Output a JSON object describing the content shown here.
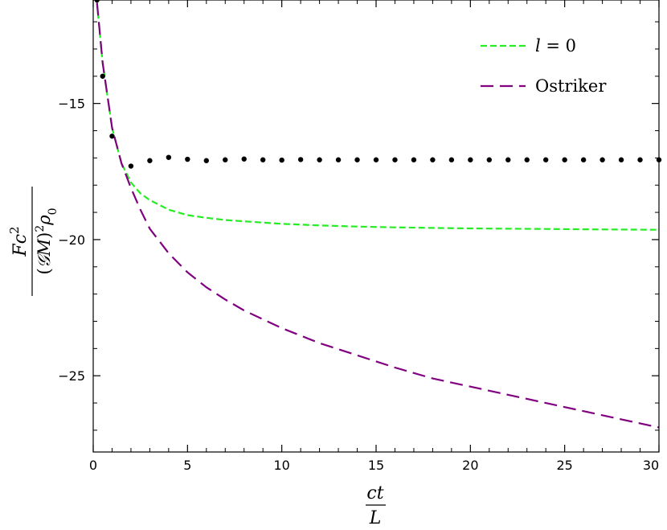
{
  "chart_data": {
    "type": "line",
    "xlabel": {
      "numerator": "ct",
      "denominator": "L"
    },
    "ylabel": {
      "numerator": {
        "base": "Fc",
        "sup": "2"
      },
      "denominator": {
        "prefix": "(",
        "calG": "𝒢",
        "M": "M",
        "close": ")",
        "sup": "2",
        "rho": "ρ",
        "sub": "0"
      }
    },
    "xlim": [
      0,
      30
    ],
    "ylim": [
      -27.8,
      -11.2
    ],
    "xticks": [
      0,
      5,
      10,
      15,
      20,
      25,
      30
    ],
    "xtick_labels": [
      "0",
      "5",
      "10",
      "15",
      "20",
      "25",
      "30"
    ],
    "yticks": [
      -15,
      -20,
      -25
    ],
    "ytick_labels": [
      "−15",
      "−20",
      "−25"
    ],
    "x_minor_step": 1,
    "y_minor_step": 1,
    "grid": false,
    "legend_position": "top-right",
    "series": [
      {
        "name": "l = 0",
        "legend": {
          "var": "l",
          "rest": " = 0"
        },
        "style": "short-dash",
        "color": "#22ee22",
        "x": [
          0.2,
          0.5,
          1.0,
          1.5,
          2.0,
          2.5,
          3.0,
          4.0,
          5.0,
          6.0,
          7.0,
          8.0,
          10.0,
          12.0,
          14.0,
          16.0,
          18.0,
          20.0,
          22.0,
          24.0,
          26.0,
          28.0,
          30.0
        ],
        "y": [
          -11.3,
          -13.5,
          -15.9,
          -17.2,
          -17.9,
          -18.3,
          -18.55,
          -18.9,
          -19.1,
          -19.2,
          -19.28,
          -19.33,
          -19.42,
          -19.48,
          -19.52,
          -19.55,
          -19.57,
          -19.59,
          -19.6,
          -19.61,
          -19.62,
          -19.63,
          -19.64
        ]
      },
      {
        "name": "Ostriker",
        "legend": {
          "var": "",
          "rest": "Ostriker"
        },
        "style": "long-dash",
        "color": "#800080",
        "x": [
          0.2,
          0.5,
          1.0,
          1.5,
          2.0,
          2.5,
          3.0,
          4.0,
          5.0,
          6.0,
          7.0,
          8.0,
          10.0,
          12.0,
          14.0,
          16.0,
          18.0,
          20.0,
          22.0,
          24.0,
          26.0,
          28.0,
          30.0
        ],
        "y": [
          -11.3,
          -13.5,
          -15.9,
          -17.2,
          -18.1,
          -18.9,
          -19.6,
          -20.5,
          -21.2,
          -21.75,
          -22.2,
          -22.6,
          -23.25,
          -23.8,
          -24.25,
          -24.7,
          -25.1,
          -25.4,
          -25.7,
          -26.0,
          -26.3,
          -26.6,
          -26.9
        ]
      },
      {
        "name": "",
        "style": "dots",
        "color": "#000000",
        "x": [
          0.2,
          0.5,
          1.0,
          2.0,
          3.0,
          4.0,
          5.0,
          6.0,
          7.0,
          8.0,
          9.0,
          10.0,
          11.0,
          12.0,
          13.0,
          14.0,
          15.0,
          16.0,
          17.0,
          18.0,
          19.0,
          20.0,
          21.0,
          22.0,
          23.0,
          24.0,
          25.0,
          26.0,
          27.0,
          28.0,
          29.0,
          30.0
        ],
        "y": [
          -11.2,
          -14.0,
          -16.2,
          -17.3,
          -17.1,
          -16.98,
          -17.05,
          -17.1,
          -17.07,
          -17.04,
          -17.07,
          -17.08,
          -17.06,
          -17.07,
          -17.07,
          -17.07,
          -17.07,
          -17.07,
          -17.07,
          -17.07,
          -17.07,
          -17.07,
          -17.07,
          -17.07,
          -17.07,
          -17.07,
          -17.07,
          -17.07,
          -17.07,
          -17.07,
          -17.07,
          -17.07
        ]
      }
    ]
  }
}
